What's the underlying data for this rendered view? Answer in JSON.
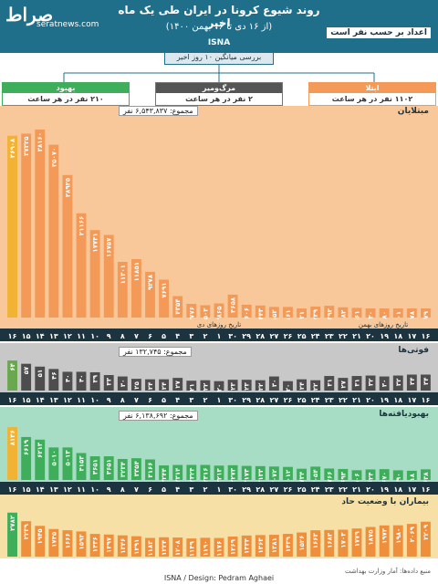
{
  "header": {
    "title": "روند شیوع کرونا در ایران طی یک ماه اخیر",
    "subtitle": "(از ۱۶ دی تا ۱۶ بهمن ۱۴۰۰)",
    "agency": "ISNA",
    "logo": "صراط",
    "site": "seratnews.com",
    "per_person_title": "اعداد بر حسب نفر است",
    "window_label": "بررسی میانگین ۱۰ روز اخیر"
  },
  "summary": {
    "infected": {
      "label": "ابتلا",
      "value": "۱۱۰۲ نفر در هر ساعت"
    },
    "deaths": {
      "label": "مرگ‌ومیر",
      "value": "۲ نفر در هر ساعت"
    },
    "recovered": {
      "label": "بهبود",
      "value": "۲۱۰ نفر در هر ساعت"
    }
  },
  "footer": {
    "credit": "ISNA / Design: Pedram Aghaei",
    "source": "منبع داده‌ها: آمار وزارت بهداشت"
  },
  "colors": {
    "header": "#1f6f8b",
    "cases_bg": "#f9c89a",
    "cases_bar": "#f39a58",
    "cases_bar_last": "#f2b233",
    "deaths_bg": "#c8c8c8",
    "deaths_bar": "#4d4d4d",
    "deaths_bar_last": "#6aa84f",
    "recovered_bg": "#a7ddc4",
    "recovered_bar": "#3fae5b",
    "recovered_bar_last": "#f2b233",
    "severe_bg": "#f6e0a6",
    "severe_bar": "#ef8f3c",
    "severe_bar_last": "#3fae5b",
    "axis_bg": "#1c3440"
  },
  "chart_data": [
    {
      "type": "bar",
      "title": "مبتلایان",
      "total_label": "مجموع: ۶,۵۴۳,۸۳۷ نفر",
      "x_day_label": "تاریخ روزهای دی",
      "x_bahman_label": "تاریخ روزهای بهمن",
      "categories": [
        "۱۶",
        "۱۷",
        "۱۸",
        "۱۹",
        "۲۰",
        "۲۱",
        "۲۲",
        "۲۳",
        "۲۴",
        "۲۵",
        "۲۶",
        "۲۷",
        "۲۸",
        "۲۹",
        "۳۰",
        "۱",
        "۲",
        "۳",
        "۴",
        "۵",
        "۶",
        "۷",
        "۸",
        "۹",
        "۱۰",
        "۱۱",
        "۱۲",
        "۱۳",
        "۱۴",
        "۱۵",
        "۱۶"
      ],
      "values": [
        1579,
        1178,
        701,
        1480,
        1230,
        1961,
        2082,
        2393,
        2239,
        1431,
        2161,
        2153,
        2443,
        2606,
        4658,
        2865,
        2503,
        2776,
        4354,
        7691,
        9278,
        11851,
        11301,
        16757,
        17741,
        21166,
        28925,
        35070,
        38160,
        37325,
        36908
      ],
      "last_value": 2319,
      "labels": [
        "۱۵۷۹",
        "۱۱۷۸",
        "۷۰۱",
        "۱۴۸۰",
        "۱۲۳۰",
        "۱۹۶۱",
        "۲۰۸۲",
        "۲۳۹۳",
        "۲۲۳۹",
        "۱۴۳۱",
        "۲۱۶۱",
        "۲۱۵۳",
        "۲۴۴۳",
        "۲۶۰۶",
        "۴۶۵۸",
        "۲۸۶۵",
        "۲۵۰۳",
        "۲۷۷۶",
        "۴۳۵۴",
        "۷۶۹۱",
        "۹۲۷۸",
        "۱۱۸۵۱",
        "۱۱۳۰۱",
        "۱۶۷۵۷",
        "۱۷۷۴۱",
        "۲۱۱۶۶",
        "۲۸۹۲۵",
        "۳۵۰۷۰",
        "۳۸۱۶۰",
        "۳۷۳۲۵",
        "۳۶۹۰۸"
      ]
    },
    {
      "type": "bar",
      "title": "فوتی‌ها",
      "total_label": "مجموع: ۱۳۲,۷۴۵ نفر",
      "values": [
        34,
        34,
        32,
        30,
        32,
        31,
        27,
        31,
        22,
        24,
        20,
        30,
        22,
        23,
        23,
        20,
        22,
        21,
        27,
        24,
        24,
        25,
        30,
        33,
        39,
        40,
        40,
        46,
        51,
        57,
        64
      ],
      "labels": [
        "۳۴",
        "۳۴",
        "۳۲",
        "۳۰",
        "۳۲",
        "۳۱",
        "۲۷",
        "۳۱",
        "۲۲",
        "۲۴",
        "۲۰",
        "۳۰",
        "۲۲",
        "۲۳",
        "۲۳",
        "۲۰",
        "۲۲",
        "۲۱",
        "۲۷",
        "۲۴",
        "۲۴",
        "۲۵",
        "۳۰",
        "۳۳",
        "۳۹",
        "۴۰",
        "۴۰",
        "۴۶",
        "۵۱",
        "۵۷",
        "۶۴"
      ]
    },
    {
      "type": "bar",
      "title": "بهبودیافته‌ها",
      "total_label": "مجموع: ۶,۱۳۸,۶۹۲ نفر",
      "values": [
        1638,
        1418,
        1490,
        1670,
        1624,
        1506,
        1693,
        1766,
        2054,
        1734,
        2012,
        2072,
        2133,
        2173,
        2273,
        2213,
        2316,
        2324,
        2314,
        2244,
        3166,
        3354,
        3234,
        3651,
        3651,
        4153,
        5013,
        5010,
        6213,
        6619,
        8136
      ],
      "labels": [
        "۱۶۳۸",
        "۱۴۱۸",
        "۱۴۹۰",
        "۱۶۷۰",
        "۱۶۲۴",
        "۱۵۰۶",
        "۱۶۹۳",
        "۱۷۶۶",
        "۲۰۵۴",
        "۱۷۳۴",
        "۲۰۱۲",
        "۲۰۷۲",
        "۲۱۳۳",
        "۲۱۷۳",
        "۲۲۷۳",
        "۲۲۱۳",
        "۲۳۱۶",
        "۲۳۲۴",
        "۲۳۱۴",
        "۲۲۴۴",
        "۳۱۶۶",
        "۳۳۵۴",
        "۳۲۳۴",
        "۳۶۵۱",
        "۳۶۵۱",
        "۴۱۵۳",
        "۵۰۱۳",
        "۵۰۱۰",
        "۶۲۱۳",
        "۶۶۱۹",
        "۸۱۳۶"
      ]
    },
    {
      "type": "bar",
      "title": "بیماران با وضعیت حاد",
      "values": [
        2209,
        2069,
        1980,
        1973,
        1875,
        1779,
        1703,
        1683,
        1663,
        1526,
        1439,
        1381,
        1363,
        1334,
        1269,
        1176,
        1190,
        1149,
        1208,
        1224,
        1183,
        1291,
        1346,
        1397,
        1436,
        1593,
        1666,
        1745,
        1945,
        2239,
        2782
      ],
      "labels": [
        "۲۲۰۹",
        "۲۰۶۹",
        "۱۹۸۰",
        "۱۹۷۳",
        "۱۸۷۵",
        "۱۷۷۹",
        "۱۷۰۳",
        "۱۶۸۳",
        "۱۶۶۳",
        "۱۵۲۶",
        "۱۴۳۹",
        "۱۳۸۱",
        "۱۳۶۳",
        "۱۳۳۴",
        "۱۲۶۹",
        "۱۱۷۶",
        "۱۱۹۰",
        "۱۱۴۹",
        "۱۲۰۸",
        "۱۲۲۴",
        "۱۱۸۳",
        "۱۲۹۱",
        "۱۳۴۶",
        "۱۳۹۷",
        "۱۴۳۶",
        "۱۵۹۳",
        "۱۶۶۶",
        "۱۷۴۵",
        "۱۹۴۵",
        "۲۲۳۹",
        "۲۷۸۲"
      ]
    }
  ]
}
